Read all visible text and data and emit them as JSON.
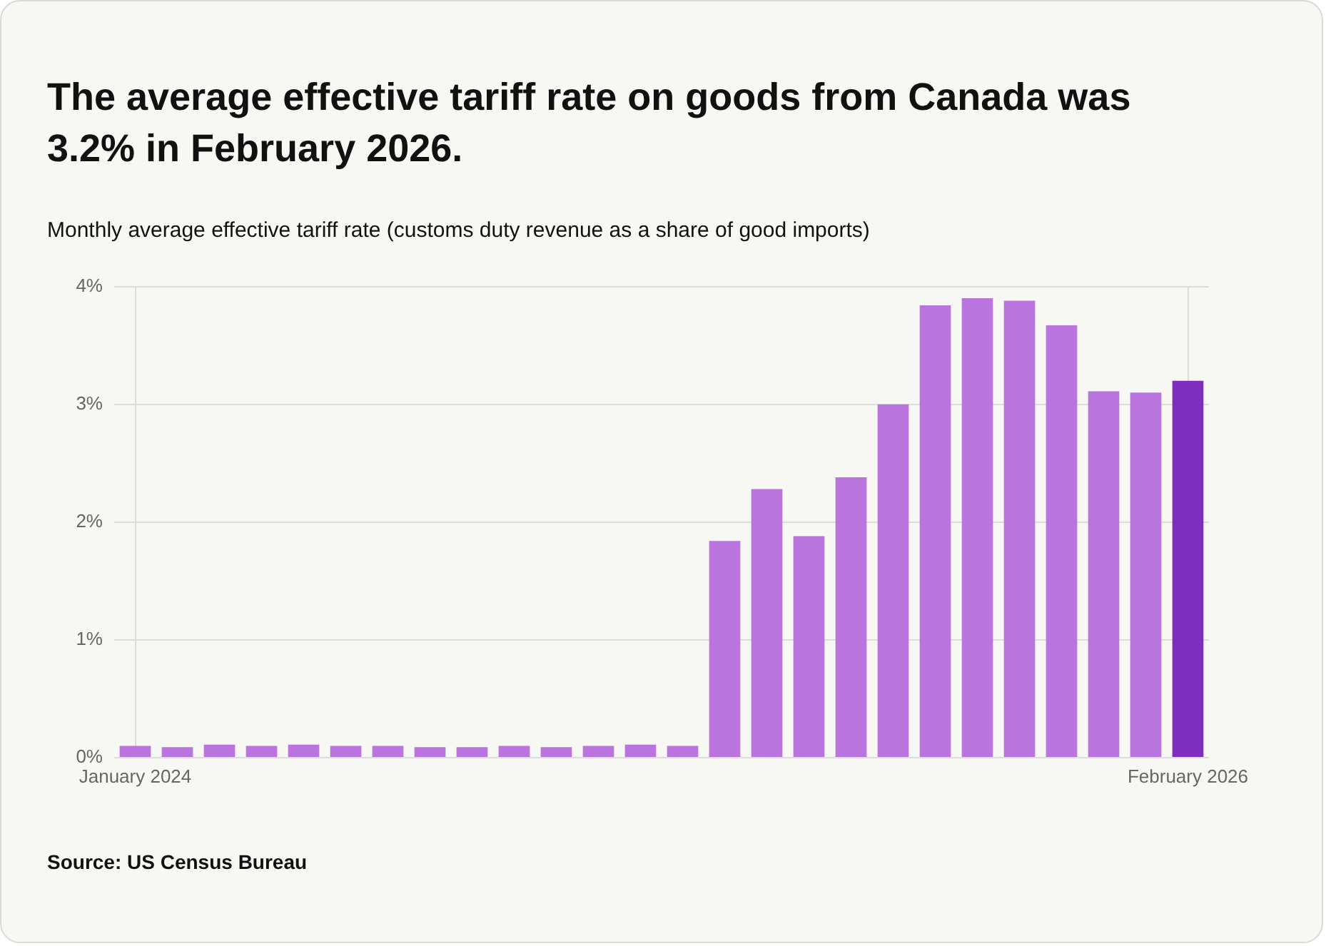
{
  "chart_data": {
    "type": "bar",
    "title": "The average effective tariff rate on goods from Canada was 3.2% in February 2026.",
    "subtitle": "Monthly average effective tariff rate (customs duty revenue as a share of good imports)",
    "annotations": [
      "Source: US Census Bureau"
    ],
    "categories": [
      "January 2024",
      null,
      null,
      null,
      null,
      null,
      null,
      null,
      null,
      null,
      null,
      null,
      null,
      null,
      null,
      null,
      null,
      null,
      null,
      null,
      null,
      null,
      null,
      null,
      null,
      "February 2026"
    ],
    "values": [
      0.1,
      0.09,
      0.11,
      0.1,
      0.11,
      0.1,
      0.1,
      0.09,
      0.09,
      0.1,
      0.09,
      0.1,
      0.11,
      0.1,
      1.84,
      2.28,
      1.88,
      2.38,
      3.0,
      3.84,
      3.9,
      3.88,
      3.67,
      3.11,
      3.1,
      3.2
    ],
    "colors": [
      "#b975dd",
      "#b975dd",
      "#b975dd",
      "#b975dd",
      "#b975dd",
      "#b975dd",
      "#b975dd",
      "#b975dd",
      "#b975dd",
      "#b975dd",
      "#b975dd",
      "#b975dd",
      "#b975dd",
      "#b975dd",
      "#b975dd",
      "#b975dd",
      "#b975dd",
      "#b975dd",
      "#b975dd",
      "#b975dd",
      "#b975dd",
      "#b975dd",
      "#b975dd",
      "#b975dd",
      "#b975dd",
      "#7f2dbf"
    ],
    "ylim": [
      0,
      4
    ],
    "yticks": [
      {
        "value": 0,
        "label": "0%"
      },
      {
        "value": 1,
        "label": "1%"
      },
      {
        "value": 2,
        "label": "2%"
      },
      {
        "value": 3,
        "label": "3%"
      },
      {
        "value": 4,
        "label": "4%"
      }
    ],
    "grid": true
  }
}
